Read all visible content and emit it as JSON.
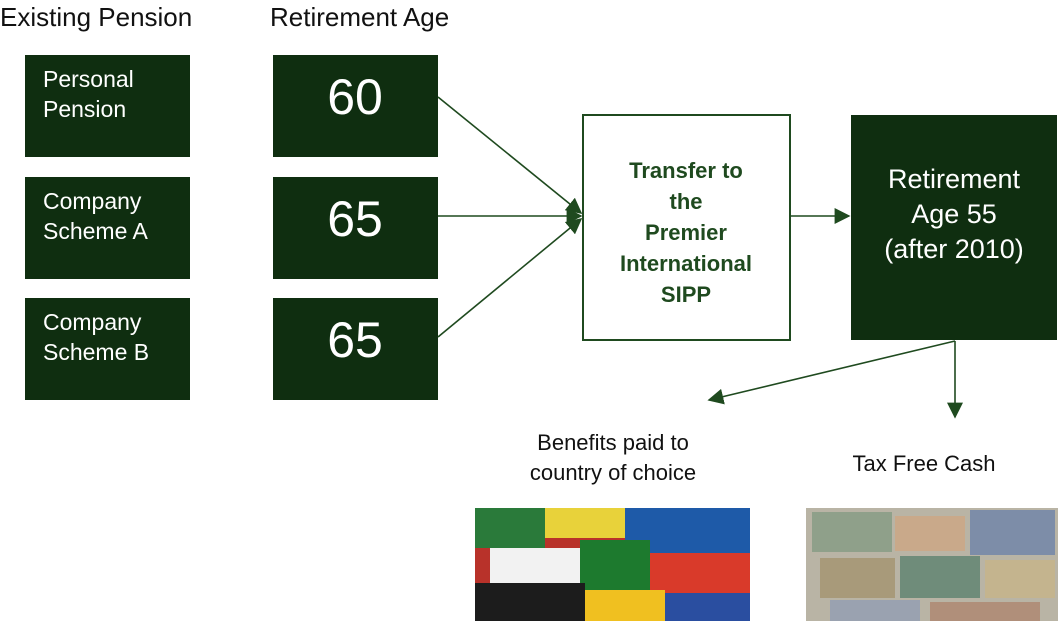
{
  "headers": {
    "existing": "Existing Pension",
    "age": "Retirement Age"
  },
  "schemes": [
    {
      "name": [
        "Personal",
        "Pension"
      ],
      "age": 60
    },
    {
      "name": [
        "Company",
        "Scheme A"
      ],
      "age": 65
    },
    {
      "name": [
        "Company",
        "Scheme B"
      ],
      "age": 65
    }
  ],
  "transfer": [
    "Transfer to",
    "the",
    "Premier",
    "International",
    "SIPP"
  ],
  "retirement": [
    "Retirement",
    "Age 55",
    "(after 2010)"
  ],
  "benefits": [
    "Benefits paid to",
    "country of choice"
  ],
  "cash": "Tax Free Cash"
}
